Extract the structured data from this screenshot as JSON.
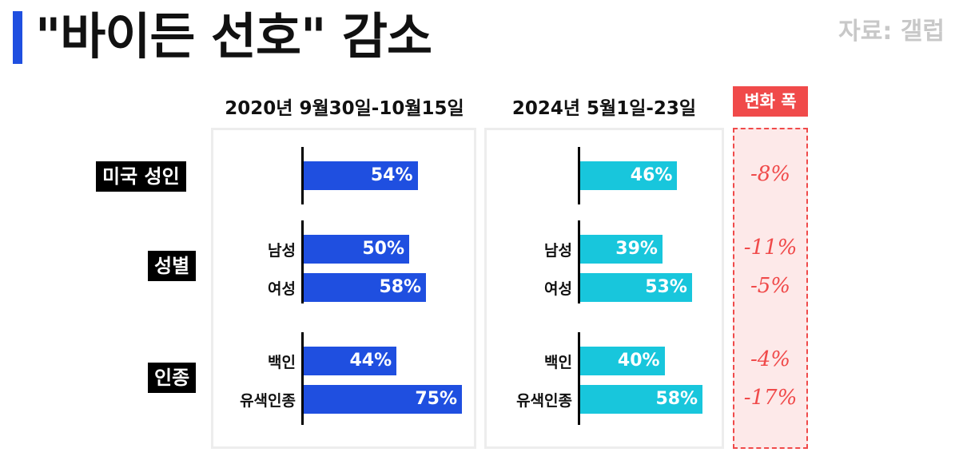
{
  "title": "\"바이든 선호\" 감소",
  "source": "자료: 갤럽",
  "headers": {
    "period1": "2020년 9월30일-10월15일",
    "period2": "2024년 5월1일-23일",
    "change": "변화 폭"
  },
  "colors": {
    "period1": "#1f4fe0",
    "period2": "#18c6dc",
    "change": "#f04a4a"
  },
  "categories": {
    "adults": "미국 성인",
    "gender": "성별",
    "race": "인종"
  },
  "chart_data": {
    "type": "bar",
    "orientation": "horizontal",
    "groups": [
      {
        "name": "미국 성인",
        "rows": [
          {
            "label": "",
            "p1": 54,
            "p2": 46,
            "delta": "-8%"
          }
        ]
      },
      {
        "name": "성별",
        "rows": [
          {
            "label": "남성",
            "p1": 50,
            "p2": 39,
            "delta": "-11%"
          },
          {
            "label": "여성",
            "p1": 58,
            "p2": 53,
            "delta": "-5%"
          }
        ]
      },
      {
        "name": "인종",
        "rows": [
          {
            "label": "백인",
            "p1": 44,
            "p2": 40,
            "delta": "-4%"
          },
          {
            "label": "유색인종",
            "p1": 75,
            "p2": 58,
            "delta": "-17%"
          }
        ]
      }
    ],
    "series": [
      {
        "name": "2020년 9월30일-10월15일",
        "values": [
          54,
          50,
          58,
          44,
          75
        ]
      },
      {
        "name": "2024년 5월1일-23일",
        "values": [
          46,
          39,
          53,
          40,
          58
        ]
      }
    ],
    "value_labels_p1": [
      "54%",
      "50%",
      "58%",
      "44%",
      "75%"
    ],
    "value_labels_p2": [
      "46%",
      "39%",
      "53%",
      "40%",
      "58%"
    ],
    "sub_labels": [
      "남성",
      "여성",
      "백인",
      "유색인종"
    ],
    "deltas": [
      "-8%",
      "-11%",
      "-5%",
      "-4%",
      "-17%"
    ],
    "xlim": [
      0,
      100
    ]
  }
}
